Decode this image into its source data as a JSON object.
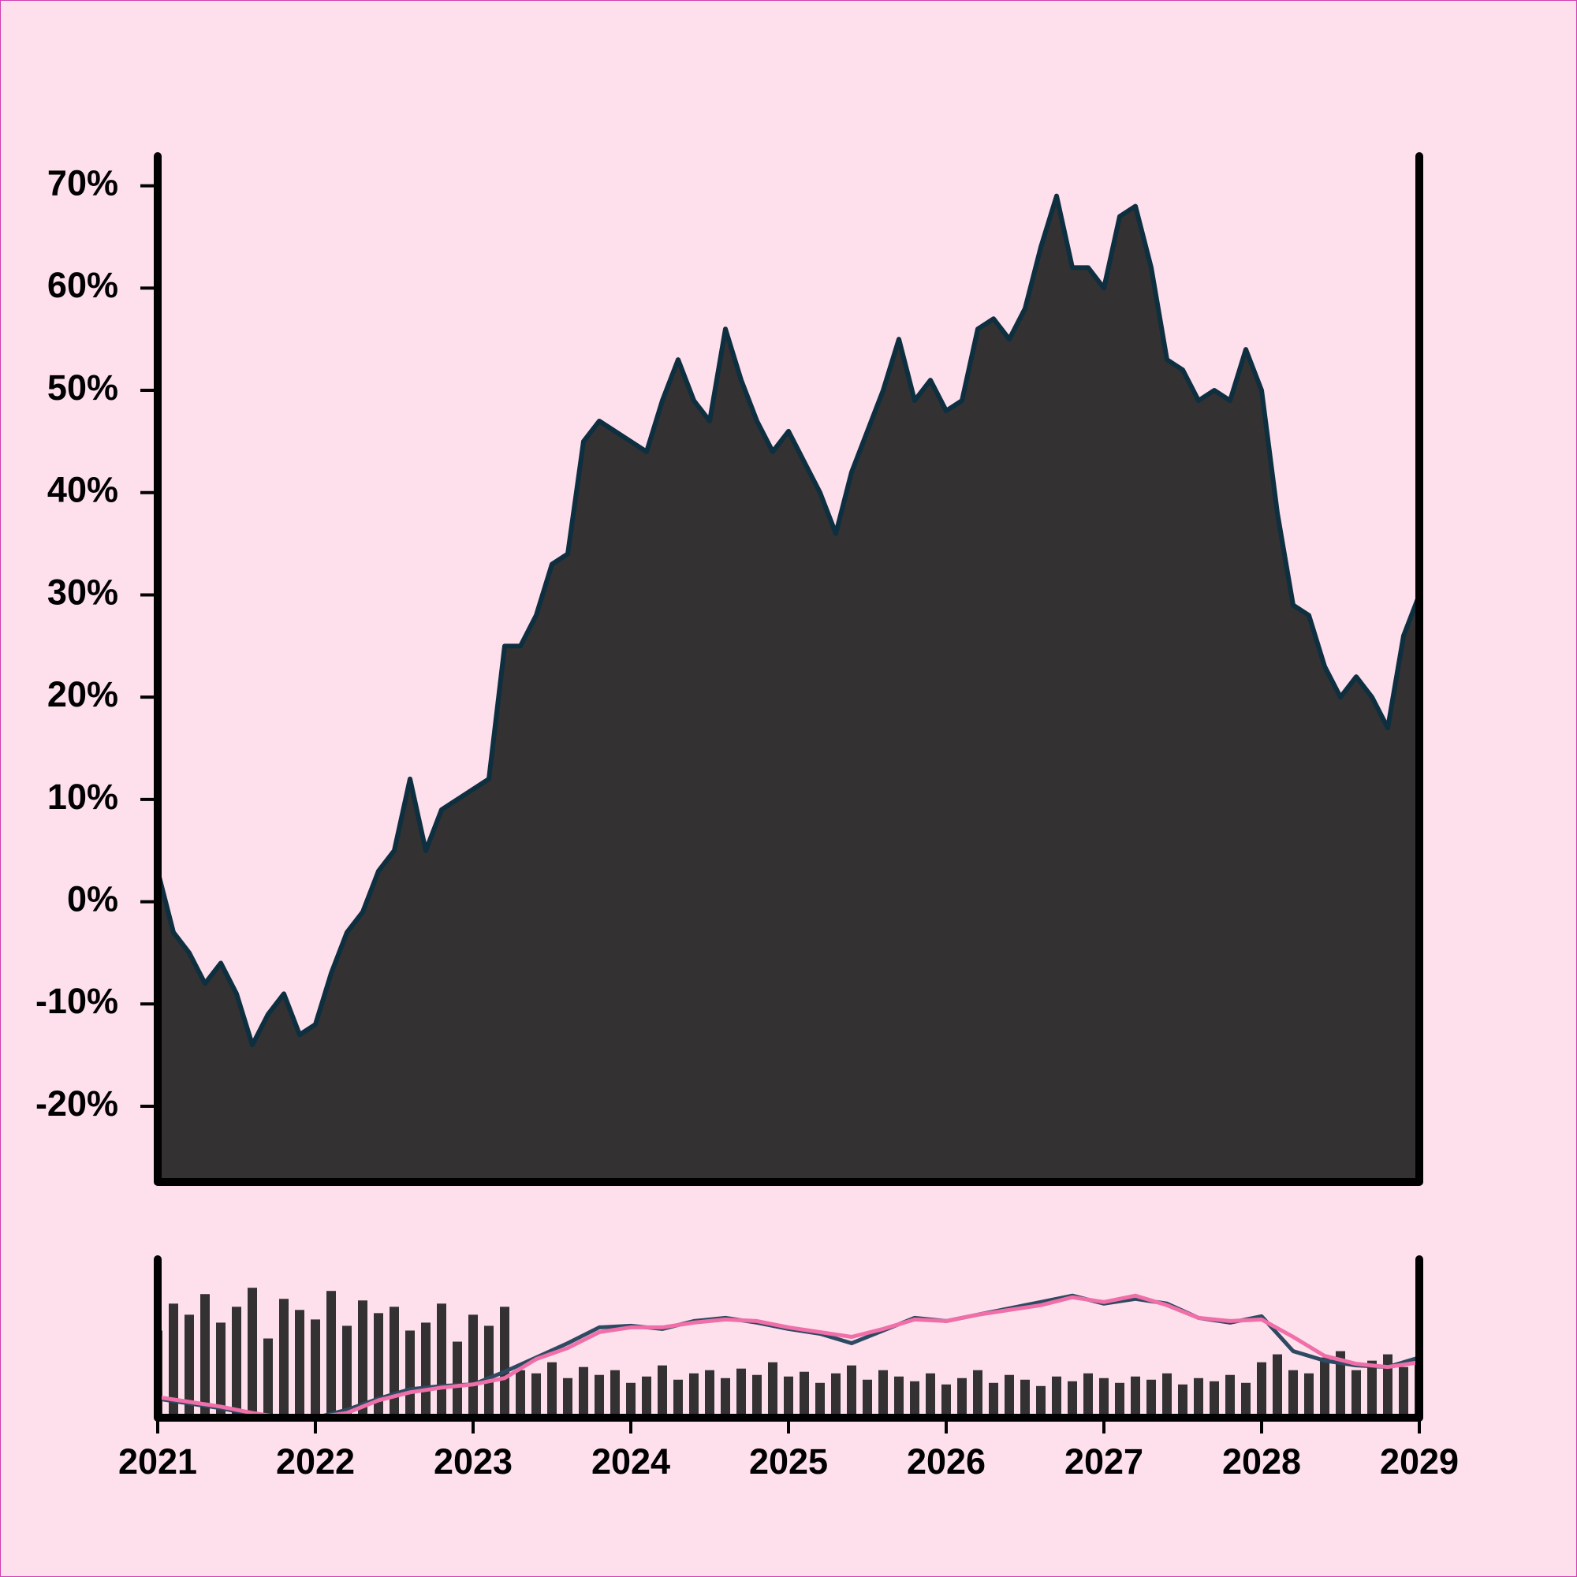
{
  "chart_data": [
    {
      "type": "area",
      "color": "#333132",
      "line_color": "#0d2f3f",
      "x": [
        2021,
        2021.1,
        2021.2,
        2021.3,
        2021.4,
        2021.5,
        2021.6,
        2021.7,
        2021.8,
        2021.9,
        2022,
        2022.1,
        2022.2,
        2022.3,
        2022.4,
        2022.5,
        2022.6,
        2022.7,
        2022.8,
        2022.9,
        2023,
        2023.1,
        2023.2,
        2023.3,
        2023.4,
        2023.5,
        2023.6,
        2023.7,
        2023.8,
        2023.9,
        2024,
        2024.1,
        2024.2,
        2024.3,
        2024.4,
        2024.5,
        2024.6,
        2024.7,
        2024.8,
        2024.9,
        2025,
        2025.1,
        2025.2,
        2025.3,
        2025.4,
        2025.5,
        2025.6,
        2025.7,
        2025.8,
        2025.9,
        2026,
        2026.1,
        2026.2,
        2026.3,
        2026.4,
        2026.5,
        2026.6,
        2026.7,
        2026.8,
        2026.9,
        2027,
        2027.1,
        2027.2,
        2027.3,
        2027.4,
        2027.5,
        2027.6,
        2027.7,
        2027.8,
        2027.9,
        2028,
        2028.1,
        2028.2,
        2028.3,
        2028.4,
        2028.5,
        2028.6,
        2028.7,
        2028.8,
        2028.9,
        2029
      ],
      "values": [
        3,
        -3,
        -5,
        -8,
        -6,
        -9,
        -14,
        -11,
        -9,
        -13,
        -12,
        -7,
        -3,
        -1,
        3,
        5,
        12,
        5,
        9,
        10,
        11,
        12,
        25,
        25,
        28,
        33,
        34,
        45,
        47,
        46,
        45,
        44,
        49,
        53,
        49,
        47,
        56,
        51,
        47,
        44,
        46,
        43,
        40,
        36,
        42,
        46,
        50,
        55,
        49,
        51,
        48,
        49,
        56,
        57,
        55,
        58,
        64,
        69,
        62,
        62,
        60,
        67,
        68,
        62,
        53,
        52,
        49,
        50,
        49,
        54,
        50,
        38,
        29,
        28,
        23,
        20,
        22,
        20,
        17,
        26,
        30
      ],
      "xlim": [
        2021,
        2029
      ],
      "ylim": [
        -27.4,
        72.9
      ],
      "yticks": [
        {
          "value": -20,
          "label": "-20%"
        },
        {
          "value": -10,
          "label": "-10%"
        },
        {
          "value": 0,
          "label": "0%"
        },
        {
          "value": 10,
          "label": "10%"
        },
        {
          "value": 20,
          "label": "20%"
        },
        {
          "value": 30,
          "label": "30%"
        },
        {
          "value": 40,
          "label": "40%"
        },
        {
          "value": 50,
          "label": "50%"
        },
        {
          "value": 60,
          "label": "60%"
        },
        {
          "value": 70,
          "label": "70%"
        }
      ]
    },
    {
      "type": "bar",
      "color": "#333132",
      "x": [
        2021,
        2021.1,
        2021.2,
        2021.3,
        2021.4,
        2021.5,
        2021.6,
        2021.7,
        2021.8,
        2021.9,
        2022,
        2022.1,
        2022.2,
        2022.3,
        2022.4,
        2022.5,
        2022.6,
        2022.7,
        2022.8,
        2022.9,
        2023,
        2023.1,
        2023.2,
        2023.3,
        2023.4,
        2023.5,
        2023.6,
        2023.7,
        2023.8,
        2023.9,
        2024,
        2024.1,
        2024.2,
        2024.3,
        2024.4,
        2024.5,
        2024.6,
        2024.7,
        2024.8,
        2024.9,
        2025,
        2025.1,
        2025.2,
        2025.3,
        2025.4,
        2025.5,
        2025.6,
        2025.7,
        2025.8,
        2025.9,
        2026,
        2026.1,
        2026.2,
        2026.3,
        2026.4,
        2026.5,
        2026.6,
        2026.7,
        2026.8,
        2026.9,
        2027,
        2027.1,
        2027.2,
        2027.3,
        2027.4,
        2027.5,
        2027.6,
        2027.7,
        2027.8,
        2027.9,
        2028,
        2028.1,
        2028.2,
        2028.3,
        2028.4,
        2028.5,
        2028.6,
        2028.7,
        2028.8,
        2028.9,
        2029
      ],
      "values": [
        55,
        72,
        65,
        78,
        60,
        70,
        82,
        50,
        75,
        68,
        62,
        80,
        58,
        74,
        66,
        70,
        55,
        60,
        72,
        48,
        65,
        58,
        70,
        30,
        28,
        35,
        25,
        32,
        27,
        30,
        22,
        26,
        33,
        24,
        28,
        30,
        25,
        31,
        27,
        35,
        26,
        29,
        22,
        28,
        33,
        24,
        30,
        26,
        23,
        28,
        21,
        25,
        30,
        22,
        27,
        24,
        20,
        26,
        23,
        28,
        25,
        22,
        26,
        24,
        28,
        21,
        25,
        23,
        27,
        22,
        35,
        40,
        30,
        28,
        38,
        42,
        30,
        36,
        40,
        32,
        38
      ],
      "lines": {
        "x": [
          2021,
          2021.2,
          2021.4,
          2021.6,
          2021.8,
          2022,
          2022.2,
          2022.4,
          2022.6,
          2022.8,
          2023,
          2023.2,
          2023.4,
          2023.6,
          2023.8,
          2024,
          2024.2,
          2024.4,
          2024.6,
          2024.8,
          2025,
          2025.2,
          2025.4,
          2025.6,
          2025.8,
          2026,
          2026.2,
          2026.4,
          2026.6,
          2026.8,
          2027,
          2027.2,
          2027.4,
          2027.6,
          2027.8,
          2028,
          2028.2,
          2028.4,
          2028.6,
          2028.8,
          2029
        ],
        "series": [
          {
            "color": "#2e4a62",
            "values": [
              12,
              9,
              6,
              2,
              0,
              0,
              5,
              12,
              18,
              20,
              21,
              29,
              38,
              47,
              57,
              58,
              56,
              61,
              63,
              60,
              56,
              53,
              47,
              55,
              63,
              61,
              65,
              69,
              73,
              77,
              72,
              75,
              72,
              63,
              60,
              64,
              42,
              36,
              33,
              32,
              38
            ]
          },
          {
            "color": "#f06fa8",
            "values": [
              13,
              10,
              7,
              3,
              0,
              0,
              3,
              11,
              16,
              19,
              21,
              25,
              37,
              44,
              54,
              57,
              57,
              60,
              62,
              61,
              57,
              54,
              51,
              56,
              62,
              61,
              65,
              68,
              71,
              76,
              73,
              77,
              71,
              63,
              61,
              62,
              51,
              39,
              34,
              32,
              35
            ]
          }
        ]
      },
      "xlim": [
        2021,
        2029
      ],
      "ylim": [
        0,
        100
      ],
      "xticks": [
        2021,
        2022,
        2023,
        2024,
        2025,
        2026,
        2027,
        2028,
        2029
      ]
    }
  ]
}
